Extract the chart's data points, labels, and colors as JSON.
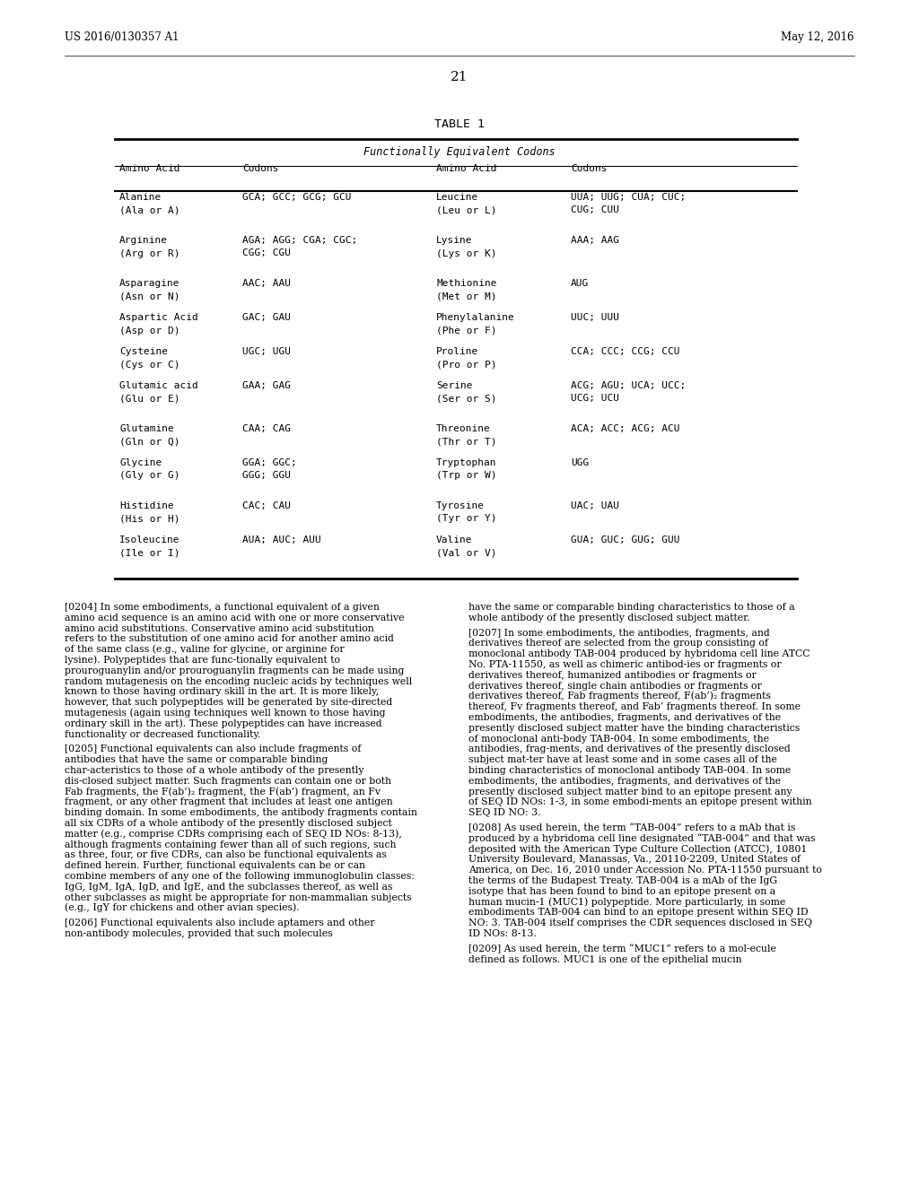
{
  "page_header_left": "US 2016/0130357 A1",
  "page_header_right": "May 12, 2016",
  "page_number": "21",
  "table_title": "TABLE 1",
  "table_subtitle": "Functionally Equivalent Codons",
  "table_cols": [
    "Amino Acid",
    "Codons",
    "Amino Acid",
    "Codons"
  ],
  "table_rows": [
    [
      "Alanine\n(Ala or A)",
      "GCA; GCC; GCG; GCU",
      "Leucine\n(Leu or L)",
      "UUA; UUG; CUA; CUC;\nCUG; CUU"
    ],
    [
      "Arginine\n(Arg or R)",
      "AGA; AGG; CGA; CGC;\nCGG; CGU",
      "Lysine\n(Lys or K)",
      "AAA; AAG"
    ],
    [
      "Asparagine\n(Asn or N)",
      "AAC; AAU",
      "Methionine\n(Met or M)",
      "AUG"
    ],
    [
      "Aspartic Acid\n(Asp or D)",
      "GAC; GAU",
      "Phenylalanine\n(Phe or F)",
      "UUC; UUU"
    ],
    [
      "Cysteine\n(Cys or C)",
      "UGC; UGU",
      "Proline\n(Pro or P)",
      "CCA; CCC; CCG; CCU"
    ],
    [
      "Glutamic acid\n(Glu or E)",
      "GAA; GAG",
      "Serine\n(Ser or S)",
      "ACG; AGU; UCA; UCC;\nUCG; UCU"
    ],
    [
      "Glutamine\n(Gln or Q)",
      "CAA; CAG",
      "Threonine\n(Thr or T)",
      "ACA; ACC; ACG; ACU"
    ],
    [
      "Glycine\n(Gly or G)",
      "GGA; GGC;\nGGG; GGU",
      "Tryptophan\n(Trp or W)",
      "UGG"
    ],
    [
      "Histidine\n(His or H)",
      "CAC; CAU",
      "Tyrosine\n(Tyr or Y)",
      "UAC; UAU"
    ],
    [
      "Isoleucine\n(Ile or I)",
      "AUA; AUC; AUU",
      "Valine\n(Val or V)",
      "GUA; GUC; GUG; GUU"
    ]
  ],
  "para_left_1_tag": "[0204]",
  "para_left_1": "In some embodiments, a functional equivalent of a given amino acid sequence is an amino acid with one or more conservative amino acid substitutions. Conservative amino acid substitution refers to the substitution of one amino acid for another amino acid of the same class (e.g., valine for glycine, or arginine for lysine). Polypeptides that are func-tionally equivalent to prouroguanylin and/or prouroguanylin fragments can be made using random mutagenesis on the encoding nucleic acids by techniques well known to those having ordinary skill in the art. It is more likely, however, that such polypeptides will be generated by site-directed mutagenesis (again using techniques well known to those having ordinary skill in the art). These polypeptides can have increased functionality or decreased functionality.",
  "para_left_2_tag": "[0205]",
  "para_left_2": "Functional equivalents can also include fragments of antibodies that have the same or comparable binding char-acteristics to those of a whole antibody of the presently dis-closed subject matter. Such fragments can contain one or both Fab fragments, the F(ab’)₂ fragment, the F(ab’) fragment, an Fv fragment, or any other fragment that includes at least one antigen binding domain. In some embodiments, the antibody fragments contain all six CDRs of a whole antibody of the presently disclosed subject matter (e.g., comprise CDRs comprising each of SEQ ID NOs: 8-13), although fragments containing fewer than all of such regions, such as three, four, or five CDRs, can also be functional equivalents as defined herein. Further, functional equivalents can be or can combine members of any one of the following immunoglobulin classes: IgG, IgM, IgA, IgD, and IgE, and the subclasses thereof, as well as other subclasses as might be appropriate for non-mammalian subjects (e.g., IgY for chickens and other avian species).",
  "para_left_3_tag": "[0206]",
  "para_left_3": "Functional equivalents also include aptamers and other non-antibody molecules, provided that such molecules",
  "para_right_0": "have the same or comparable binding characteristics to those of a whole antibody of the presently disclosed subject matter.",
  "para_right_1_tag": "[0207]",
  "para_right_1": "In some embodiments, the antibodies, fragments, and derivatives thereof are selected from the group consisting of monoclonal antibody TAB-004 produced by hybridoma cell line ATCC No. PTA-11550, as well as chimeric antibod-ies or fragments or derivatives thereof, humanized antibodies or fragments or derivatives thereof, single chain antibodies or fragments or derivatives thereof, Fab fragments thereof, F(ab’)₂ fragments thereof, Fv fragments thereof, and Fab’ fragments thereof. In some embodiments, the antibodies, fragments, and derivatives of the presently disclosed subject matter have the binding characteristics of monoclonal anti-body TAB-004. In some embodiments, the antibodies, frag-ments, and derivatives of the presently disclosed subject mat-ter have at least some and in some cases all of the binding characteristics of monoclonal antibody TAB-004. In some embodiments, the antibodies, fragments, and derivatives of the presently disclosed subject matter bind to an epitope present any of SEQ ID NOs: 1-3, in some embodi-ments an epitope present within SEQ ID NO: 3.",
  "para_right_2_tag": "[0208]",
  "para_right_2": "As used herein, the term “TAB-004” refers to a mAb that is produced by a hybridoma cell line designated “TAB-004” and that was deposited with the American Type Culture Collection (ATCC), 10801 University Boulevard, Manassas, Va., 20110-2209, United States of America, on Dec. 16, 2010 under Accession No. PTA-11550 pursuant to the terms of the Budapest Treaty. TAB-004 is a mAb of the IgG isotype that has been found to bind to an epitope present on a human mucin-1 (MUC1) polypeptide. More particularly, in some embodiments TAB-004 can bind to an epitope present within SEQ ID NO: 3. TAB-004 itself comprises the CDR sequences disclosed in SEQ ID NOs: 8-13.",
  "para_right_3_tag": "[0209]",
  "para_right_3": "As used herein, the term “MUC1” refers to a mol-ecule defined as follows. MUC1 is one of the epithelial mucin"
}
